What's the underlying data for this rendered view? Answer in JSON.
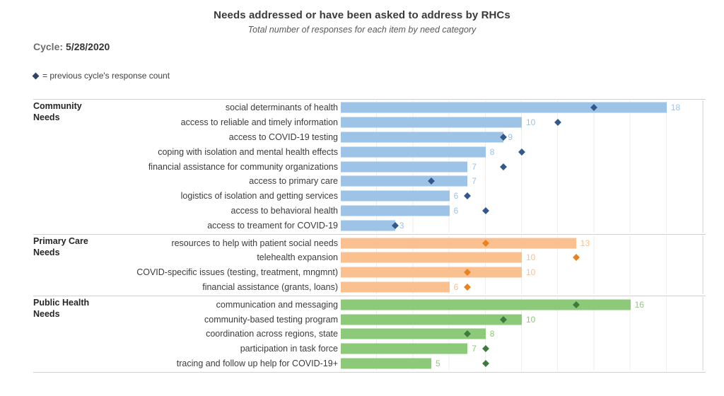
{
  "header": {
    "title": "Needs addressed or have been asked to address by RHCs",
    "subtitle": "Total number of responses for each item by need category",
    "cycle_label": "Cycle:",
    "cycle_value": "5/28/2020",
    "legend_text": "= previous cycle's response count"
  },
  "colors": {
    "legend_diamond": "#2e4466",
    "community_bar": "#9dc3e6",
    "community_value_label": "#9dc3e6",
    "community_diamond": "#33598c",
    "primary_bar": "#fac090",
    "primary_value_label": "#fac090",
    "primary_diamond": "#e8821e",
    "public_bar": "#8cca7a",
    "public_value_label": "#8cca7a",
    "public_diamond": "#3d7a3d"
  },
  "chart_data": {
    "type": "bar",
    "orientation": "horizontal",
    "title": "Needs addressed or have been asked to address by RHCs",
    "subtitle": "Total number of responses for each item by need category",
    "xlim": [
      0,
      20
    ],
    "gridline_step": 2,
    "grid": true,
    "legend": "diamond = previous cycle's response count",
    "groups": [
      {
        "category": "Community Needs",
        "bar_color": "#9dc3e6",
        "diamond_color": "#33598c",
        "items": [
          {
            "label": "social determinants of health",
            "value": 18,
            "previous": 14
          },
          {
            "label": "access to reliable and timely information",
            "value": 10,
            "previous": 12
          },
          {
            "label": "access to COVID-19 testing",
            "value": 9,
            "previous": 9
          },
          {
            "label": "coping with isolation and mental health effects",
            "value": 8,
            "previous": 10
          },
          {
            "label": "financial assistance for community organizations",
            "value": 7,
            "previous": 9
          },
          {
            "label": "access to primary care",
            "value": 7,
            "previous": 5
          },
          {
            "label": "logistics of isolation and getting services",
            "value": 6,
            "previous": 7
          },
          {
            "label": "access to behavioral health",
            "value": 6,
            "previous": 8
          },
          {
            "label": "access to treament for COVID-19",
            "value": 3,
            "previous": 3
          }
        ]
      },
      {
        "category": "Primary Care Needs",
        "bar_color": "#fac090",
        "diamond_color": "#e8821e",
        "items": [
          {
            "label": "resources to help with patient social needs",
            "value": 13,
            "previous": 8
          },
          {
            "label": "telehealth expansion",
            "value": 10,
            "previous": 13
          },
          {
            "label": "COVID-specific issues (testing, treatment, mngmnt)",
            "value": 10,
            "previous": 7
          },
          {
            "label": "financial assistance (grants, loans)",
            "value": 6,
            "previous": 7
          }
        ]
      },
      {
        "category": "Public Health Needs",
        "bar_color": "#8cca7a",
        "diamond_color": "#3d7a3d",
        "items": [
          {
            "label": "communication and messaging",
            "value": 16,
            "previous": 13
          },
          {
            "label": "community-based testing program",
            "value": 10,
            "previous": 9
          },
          {
            "label": "coordination across regions, state",
            "value": 8,
            "previous": 7
          },
          {
            "label": "participation in task force",
            "value": 7,
            "previous": 8
          },
          {
            "label": "tracing and follow up help for COVID-19+",
            "value": 5,
            "previous": 8
          }
        ]
      }
    ]
  }
}
